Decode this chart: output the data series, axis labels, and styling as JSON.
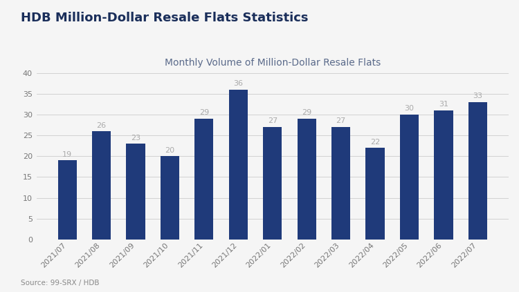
{
  "title": "HDB Million-Dollar Resale Flats Statistics",
  "subtitle": "Monthly Volume of Million-Dollar Resale Flats",
  "source": "Source: 99-SRX / HDB",
  "categories": [
    "2021/07",
    "2021/08",
    "2021/09",
    "2021/10",
    "2021/11",
    "2021/12",
    "2022/01",
    "2022/02",
    "2022/03",
    "2022/04",
    "2022/05",
    "2022/06",
    "2022/07"
  ],
  "values": [
    19,
    26,
    23,
    20,
    29,
    36,
    27,
    29,
    27,
    22,
    30,
    31,
    33
  ],
  "bar_color": "#1f3a7a",
  "label_color": "#aaaaaa",
  "background_color": "#f5f5f5",
  "title_color": "#1a2e5a",
  "subtitle_color": "#5a6a8a",
  "source_color": "#888888",
  "grid_color": "#cccccc",
  "ylim": [
    0,
    40
  ],
  "yticks": [
    0,
    5,
    10,
    15,
    20,
    25,
    30,
    35,
    40
  ],
  "title_fontsize": 13,
  "subtitle_fontsize": 10,
  "label_fontsize": 8,
  "tick_fontsize": 8,
  "source_fontsize": 7.5
}
